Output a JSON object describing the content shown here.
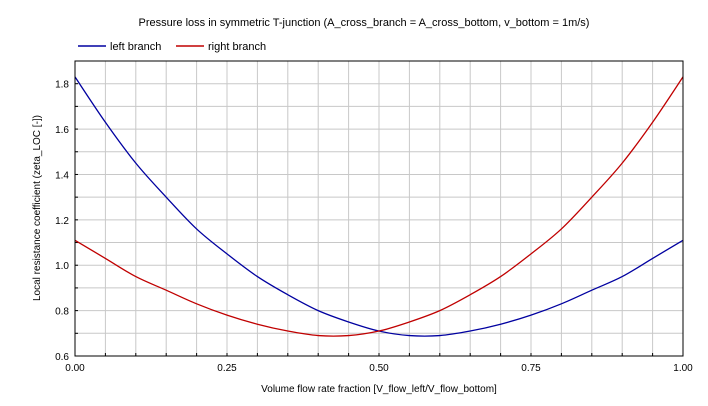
{
  "chart_data": {
    "type": "line",
    "title": "Pressure loss in symmetric T-junction (A_cross_branch = A_cross_bottom, v_bottom = 1m/s)",
    "xlabel": "Volume flow rate fraction [V_flow_left/V_flow_bottom]",
    "ylabel": "Local resistance coefficient (zeta_LOC [-])",
    "xlim": [
      0,
      1
    ],
    "ylim": [
      0.6,
      1.9
    ],
    "xticks": [
      "0.00",
      "0.25",
      "0.50",
      "0.75",
      "1.00"
    ],
    "yticks": [
      "0.6",
      "0.8",
      "1.0",
      "1.2",
      "1.4",
      "1.6",
      "1.8"
    ],
    "grid": true,
    "legend_position": "top-left",
    "x": [
      0.0,
      0.05,
      0.1,
      0.15,
      0.2,
      0.25,
      0.3,
      0.35,
      0.4,
      0.45,
      0.5,
      0.55,
      0.6,
      0.65,
      0.7,
      0.75,
      0.8,
      0.85,
      0.9,
      0.95,
      1.0
    ],
    "series": [
      {
        "name": "left branch",
        "color": "#0000a0",
        "values": [
          1.83,
          1.63,
          1.45,
          1.3,
          1.16,
          1.05,
          0.95,
          0.87,
          0.8,
          0.75,
          0.71,
          0.69,
          0.69,
          0.71,
          0.74,
          0.78,
          0.83,
          0.89,
          0.95,
          1.03,
          1.11
        ]
      },
      {
        "name": "right branch",
        "color": "#c00000",
        "values": [
          1.11,
          1.03,
          0.95,
          0.89,
          0.83,
          0.78,
          0.74,
          0.71,
          0.69,
          0.69,
          0.71,
          0.75,
          0.8,
          0.87,
          0.95,
          1.05,
          1.16,
          1.3,
          1.45,
          1.63,
          1.83
        ]
      }
    ]
  }
}
